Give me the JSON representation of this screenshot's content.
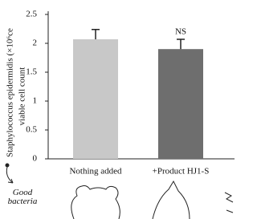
{
  "chart_data": {
    "type": "bar",
    "ylabel": [
      "Staphylococcus epidermidis (×10⁶ce",
      "viable cell count"
    ],
    "categories": [
      "Nothing added",
      "+Product HJ1-S"
    ],
    "values": [
      2.07,
      1.9
    ],
    "errors": [
      0.17,
      0.17
    ],
    "colors": [
      "#c8c8c8",
      "#6e6e6e"
    ],
    "ylim": [
      0,
      2.5
    ],
    "yticks": [
      0,
      0.5,
      1,
      1.5,
      2,
      2.5
    ],
    "annotations": [
      {
        "text": "NS",
        "category": 1
      }
    ],
    "illustration_label": "Good bacteria"
  }
}
